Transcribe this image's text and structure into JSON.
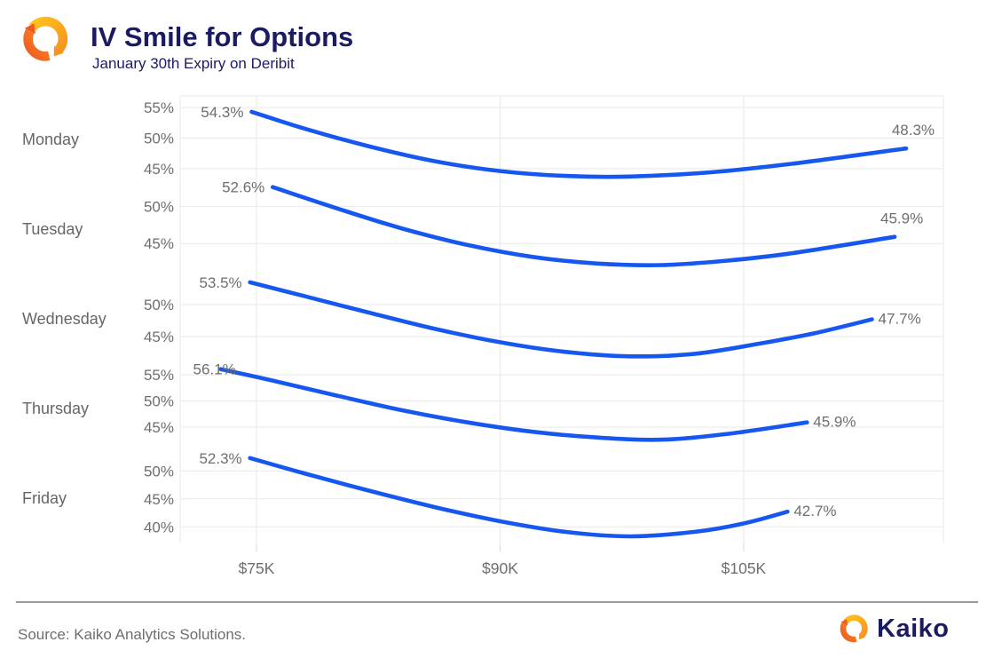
{
  "header": {
    "title": "IV Smile for Options",
    "subtitle": "January 30th Expiry on Deribit"
  },
  "footer": {
    "source": "Source: Kaiko Analytics Solutions.",
    "brand": "Kaiko"
  },
  "colors": {
    "line_blue": "#1657f0",
    "navy": "#1b1b63",
    "label_gray": "#6e6e6e",
    "day_gray": "#666666",
    "grid": "#e9e9e7",
    "tick_stub": "#d9d9d7",
    "logo_yellow": "#ffc21d",
    "logo_orange": "#f8941e",
    "logo_red": "#f05a22"
  },
  "chart_data": {
    "type": "line",
    "title": "IV Smile for Options",
    "subtitle": "January 30th Expiry on Deribit",
    "x_unit": "BTC strike price (USD)",
    "y_unit": "implied volatility (%)",
    "grid": true,
    "legend": "none (small multiples labeled by day)",
    "x_tick_labels": [
      "$75K",
      "$90K",
      "$105K"
    ],
    "x_tick_values": [
      75,
      90,
      105
    ],
    "x_domain": [
      70.3,
      117.3
    ],
    "charts": [
      {
        "day": "Monday",
        "start_label": "54.3%",
        "end_label": "48.3%",
        "y_ticks": [
          55,
          50,
          45
        ],
        "ylim": [
          42.8,
          56.9
        ],
        "points": [
          [
            74.7,
            54.3
          ],
          [
            78,
            51.5
          ],
          [
            82,
            48.6
          ],
          [
            86,
            46.2
          ],
          [
            90,
            44.6
          ],
          [
            94,
            43.8
          ],
          [
            98,
            43.7
          ],
          [
            103,
            44.4
          ],
          [
            108,
            45.8
          ],
          [
            115,
            48.3
          ]
        ]
      },
      {
        "day": "Tuesday",
        "start_label": "52.6%",
        "end_label": "45.9%",
        "y_ticks": [
          50,
          45
        ],
        "ylim": [
          41.2,
          52.8
        ],
        "points": [
          [
            76,
            52.6
          ],
          [
            80,
            49.7
          ],
          [
            84,
            47.0
          ],
          [
            88,
            44.8
          ],
          [
            92,
            43.2
          ],
          [
            96,
            42.3
          ],
          [
            100,
            42.1
          ],
          [
            104,
            42.7
          ],
          [
            108,
            43.7
          ],
          [
            114.3,
            45.9
          ]
        ]
      },
      {
        "day": "Wednesday",
        "start_label": "53.5%",
        "end_label": "47.7%",
        "y_ticks": [
          50,
          45
        ],
        "ylim": [
          41.1,
          54.6
        ],
        "points": [
          [
            74.6,
            53.5
          ],
          [
            78,
            51.3
          ],
          [
            82,
            48.7
          ],
          [
            86,
            46.2
          ],
          [
            90,
            44.1
          ],
          [
            94,
            42.6
          ],
          [
            98,
            41.9
          ],
          [
            102,
            42.3
          ],
          [
            106,
            43.9
          ],
          [
            109.5,
            45.6
          ],
          [
            112.9,
            47.7
          ]
        ]
      },
      {
        "day": "Thursday",
        "start_label": "56.1%",
        "end_label": "45.9%",
        "y_ticks": [
          55,
          50,
          45
        ],
        "ylim": [
          40.4,
          56.9
        ],
        "points": [
          [
            72.8,
            56.1
          ],
          [
            76,
            53.9
          ],
          [
            80,
            51.0
          ],
          [
            84,
            48.2
          ],
          [
            88,
            45.9
          ],
          [
            92,
            44.1
          ],
          [
            96,
            43.0
          ],
          [
            100,
            42.6
          ],
          [
            104,
            43.7
          ],
          [
            108.9,
            45.9
          ]
        ]
      },
      {
        "day": "Friday",
        "start_label": "52.3%",
        "end_label": "42.7%",
        "y_ticks": [
          50,
          45,
          40
        ],
        "ylim": [
          37.5,
          52.9
        ],
        "points": [
          [
            74.6,
            52.3
          ],
          [
            78,
            49.5
          ],
          [
            82,
            46.4
          ],
          [
            86,
            43.5
          ],
          [
            90,
            41.0
          ],
          [
            94,
            39.1
          ],
          [
            98,
            38.3
          ],
          [
            102,
            39.1
          ],
          [
            105,
            40.6
          ],
          [
            107.7,
            42.7
          ]
        ]
      }
    ]
  }
}
